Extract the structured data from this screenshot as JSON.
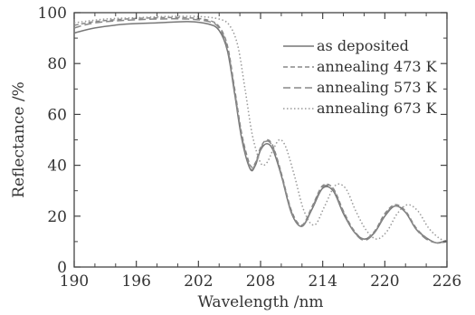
{
  "chart_data": {
    "type": "line",
    "xlabel": "Wavelength /nm",
    "ylabel": "Reflectance /%",
    "xlim": [
      190,
      226
    ],
    "ylim": [
      0,
      100
    ],
    "xticks": [
      190,
      196,
      202,
      208,
      214,
      220,
      226
    ],
    "yticks": [
      0,
      20,
      40,
      60,
      80,
      100
    ],
    "grid": false,
    "legend_position": "top-right",
    "series": [
      {
        "name": "as deposited",
        "style": "solid",
        "color": "#777777",
        "x": [
          190,
          192,
          195,
          198,
          201,
          203,
          204,
          204.8,
          205.5,
          206.2,
          207,
          207.5,
          208,
          208.6,
          209.2,
          210,
          211,
          212,
          213,
          214,
          215,
          216,
          217,
          218,
          219,
          220,
          221,
          222,
          223,
          224,
          225,
          226
        ],
        "y": [
          92,
          94,
          95.5,
          96,
          96.5,
          95.5,
          93,
          85,
          68,
          50,
          38.5,
          40,
          46,
          48.5,
          46,
          36,
          21,
          16,
          23,
          31,
          30,
          21,
          14,
          11,
          13.5,
          20,
          24,
          21.5,
          15,
          11.5,
          9.5,
          10.5
        ]
      },
      {
        "name": "annealing 473 K",
        "style": "dashed",
        "color": "#888888",
        "x": [
          190,
          192,
          195,
          198,
          201,
          203,
          204,
          204.8,
          205.5,
          206.2,
          207,
          207.5,
          208,
          208.6,
          209.2,
          210,
          211,
          212,
          213,
          214,
          215,
          216,
          217,
          218,
          219,
          220,
          221,
          222,
          223,
          224,
          225,
          226
        ],
        "y": [
          95,
          96.5,
          97.5,
          98,
          98,
          97,
          94.5,
          87,
          70,
          52,
          40,
          41,
          47,
          50,
          47.5,
          37,
          22,
          16.5,
          24,
          32,
          31,
          22,
          14.5,
          11,
          14,
          21,
          24.5,
          22,
          15.5,
          11.5,
          9.5,
          10
        ]
      },
      {
        "name": "annealing 573 K",
        "style": "long-dashed",
        "color": "#888888",
        "x": [
          190,
          192,
          195,
          198,
          201,
          203,
          204,
          204.8,
          205.5,
          206.2,
          207,
          207.5,
          208,
          208.6,
          209.2,
          210,
          211,
          212,
          213,
          214,
          215,
          216,
          217,
          218,
          219,
          220,
          221,
          222,
          223,
          224,
          225,
          226
        ],
        "y": [
          94,
          96,
          97,
          97.5,
          97.5,
          96.5,
          94,
          86,
          69,
          51,
          39,
          40.5,
          46.5,
          49.5,
          47,
          36.5,
          21.5,
          16,
          23.5,
          31.5,
          30.5,
          21.5,
          14,
          10.5,
          13.5,
          20.5,
          24,
          21.5,
          15,
          11,
          9.5,
          10
        ]
      },
      {
        "name": "annealing 673 K",
        "style": "dotted",
        "color": "#999999",
        "x": [
          190,
          193,
          196,
          199,
          202,
          204,
          205,
          205.8,
          206.5,
          207.2,
          208,
          208.6,
          209.2,
          209.8,
          210.4,
          211.2,
          212.2,
          213.2,
          214.2,
          215.2,
          216.2,
          217.2,
          218.2,
          219.2,
          220.2,
          221.2,
          222.2,
          223.2,
          224.2,
          225.2,
          226
        ],
        "y": [
          96,
          97.5,
          98,
          98.5,
          98.5,
          97.5,
          95,
          87,
          70,
          52,
          41,
          41,
          46,
          50,
          47.5,
          37,
          22,
          16.5,
          24,
          32,
          31,
          22,
          14.5,
          11,
          14,
          21,
          24.5,
          22,
          15.5,
          11.5,
          10
        ]
      }
    ]
  }
}
